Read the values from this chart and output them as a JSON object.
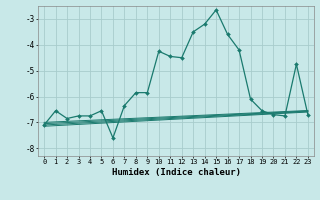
{
  "xlabel": "Humidex (Indice chaleur)",
  "background_color": "#c8e8e8",
  "grid_color": "#a8cccc",
  "line_color": "#1a7a6e",
  "xlim": [
    -0.5,
    23.5
  ],
  "ylim": [
    -8.3,
    -2.5
  ],
  "ytick_values": [
    -8,
    -7,
    -6,
    -5,
    -4,
    -3
  ],
  "main_series": {
    "x": [
      0,
      1,
      2,
      3,
      4,
      5,
      6,
      7,
      8,
      9,
      10,
      11,
      12,
      13,
      14,
      15,
      16,
      17,
      18,
      19,
      20,
      21,
      22,
      23
    ],
    "y": [
      -7.1,
      -6.55,
      -6.85,
      -6.75,
      -6.75,
      -6.55,
      -7.6,
      -6.35,
      -5.85,
      -5.85,
      -4.25,
      -4.45,
      -4.5,
      -3.5,
      -3.2,
      -2.65,
      -3.6,
      -4.2,
      -6.1,
      -6.55,
      -6.7,
      -6.75,
      -4.75,
      -6.7
    ]
  },
  "flat_lines": [
    {
      "x0": 0,
      "x1": 23,
      "y0": -7.15,
      "y1": -6.6
    },
    {
      "x0": 0,
      "x1": 23,
      "y0": -7.1,
      "y1": -6.58
    },
    {
      "x0": 0,
      "x1": 23,
      "y0": -7.05,
      "y1": -6.56
    },
    {
      "x0": 0,
      "x1": 23,
      "y0": -7.0,
      "y1": -6.54
    }
  ]
}
